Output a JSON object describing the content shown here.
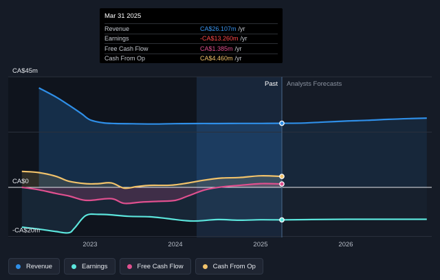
{
  "colors": {
    "revenue": "#2f8fe8",
    "earnings": "#5ce6dd",
    "free_cash_flow": "#e0508f",
    "cash_from_op": "#f2c36b"
  },
  "tooltip": {
    "date": "Mar 31 2025",
    "rows": [
      {
        "label": "Revenue",
        "value": "CA$26.107m",
        "unit": "/yr",
        "color": "#3a95f0"
      },
      {
        "label": "Earnings",
        "value": "-CA$13.260m",
        "unit": "/yr",
        "color": "#ff4a4a"
      },
      {
        "label": "Free Cash Flow",
        "value": "CA$1.385m",
        "unit": "/yr",
        "color": "#e0508f"
      },
      {
        "label": "Cash From Op",
        "value": "CA$4.460m",
        "unit": "/yr",
        "color": "#f2c36b"
      }
    ]
  },
  "legend": [
    {
      "label": "Revenue",
      "color": "#2f8fe8"
    },
    {
      "label": "Earnings",
      "color": "#5ce6dd"
    },
    {
      "label": "Free Cash Flow",
      "color": "#e0508f"
    },
    {
      "label": "Cash From Op",
      "color": "#f2c36b"
    }
  ],
  "chart_data": {
    "type": "line",
    "y_unit": "CA$ millions",
    "ylim": [
      -20,
      45
    ],
    "y_tick_labels": [
      {
        "value": 45,
        "label": "CA$45m"
      },
      {
        "value": 0,
        "label": "CA$0"
      },
      {
        "value": -20,
        "label": "-CA$20m"
      }
    ],
    "x_tick_labels": [
      {
        "value": 2023.0,
        "label": "2023"
      },
      {
        "value": 2024.0,
        "label": "2024"
      },
      {
        "value": 2025.0,
        "label": "2025"
      },
      {
        "value": 2026.0,
        "label": "2026"
      }
    ],
    "xlim": [
      2022.2,
      2027.0
    ],
    "past_label": "Past",
    "forecast_label": "Analysts Forecasts",
    "current_date": 2025.25,
    "highlight_start": 2024.25,
    "series": [
      {
        "name": "Revenue",
        "key": "revenue",
        "points": [
          [
            2022.4,
            40.5
          ],
          [
            2022.6,
            36.8
          ],
          [
            2022.75,
            33.5
          ],
          [
            2022.9,
            30
          ],
          [
            2023.0,
            27.5
          ],
          [
            2023.15,
            26.3
          ],
          [
            2023.3,
            26.0
          ],
          [
            2023.5,
            25.9
          ],
          [
            2023.75,
            25.8
          ],
          [
            2024.0,
            25.95
          ],
          [
            2024.25,
            26.0
          ],
          [
            2024.5,
            26.0
          ],
          [
            2024.75,
            26.05
          ],
          [
            2025.0,
            26.05
          ],
          [
            2025.25,
            26.107
          ]
        ],
        "forecast": [
          [
            2025.25,
            26.107
          ],
          [
            2025.5,
            26.2
          ],
          [
            2025.75,
            26.6
          ],
          [
            2026.0,
            27.0
          ],
          [
            2026.25,
            27.3
          ],
          [
            2026.5,
            27.7
          ],
          [
            2026.75,
            28.0
          ],
          [
            2026.95,
            28.2
          ]
        ]
      },
      {
        "name": "Earnings",
        "key": "earnings",
        "points": [
          [
            2022.2,
            -16.2
          ],
          [
            2022.4,
            -17.0
          ],
          [
            2022.6,
            -18.0
          ],
          [
            2022.75,
            -18.5
          ],
          [
            2022.82,
            -16.5
          ],
          [
            2022.95,
            -11.5
          ],
          [
            2023.1,
            -11.0
          ],
          [
            2023.25,
            -11.2
          ],
          [
            2023.45,
            -11.8
          ],
          [
            2023.7,
            -12.0
          ],
          [
            2023.9,
            -12.7
          ],
          [
            2024.1,
            -13.5
          ],
          [
            2024.25,
            -13.7
          ],
          [
            2024.5,
            -13.1
          ],
          [
            2024.75,
            -13.4
          ],
          [
            2025.0,
            -13.2
          ],
          [
            2025.25,
            -13.26
          ]
        ],
        "forecast": [
          [
            2025.25,
            -13.26
          ],
          [
            2025.6,
            -13.1
          ],
          [
            2026.0,
            -13.0
          ],
          [
            2026.5,
            -13.0
          ],
          [
            2026.95,
            -13.0
          ]
        ]
      },
      {
        "name": "Free Cash Flow",
        "key": "free_cash_flow",
        "points": [
          [
            2022.2,
            0
          ],
          [
            2022.4,
            -1.0
          ],
          [
            2022.6,
            -2.5
          ],
          [
            2022.75,
            -3.5
          ],
          [
            2022.9,
            -5.0
          ],
          [
            2023.0,
            -5.3
          ],
          [
            2023.25,
            -4.6
          ],
          [
            2023.4,
            -6.5
          ],
          [
            2023.6,
            -6.0
          ],
          [
            2023.8,
            -5.7
          ],
          [
            2024.0,
            -5.3
          ],
          [
            2024.15,
            -3.5
          ],
          [
            2024.35,
            -1.0
          ],
          [
            2024.55,
            0.2
          ],
          [
            2024.75,
            0.8
          ],
          [
            2025.0,
            1.5
          ],
          [
            2025.25,
            1.385
          ]
        ]
      },
      {
        "name": "Cash From Op",
        "key": "cash_from_op",
        "points": [
          [
            2022.2,
            6.5
          ],
          [
            2022.4,
            6.0
          ],
          [
            2022.6,
            4.5
          ],
          [
            2022.75,
            2.5
          ],
          [
            2022.95,
            1.5
          ],
          [
            2023.1,
            1.5
          ],
          [
            2023.25,
            1.8
          ],
          [
            2023.4,
            -0.3
          ],
          [
            2023.55,
            0.3
          ],
          [
            2023.7,
            0.8
          ],
          [
            2023.95,
            0.9
          ],
          [
            2024.15,
            1.8
          ],
          [
            2024.35,
            3.0
          ],
          [
            2024.55,
            3.8
          ],
          [
            2024.75,
            4.0
          ],
          [
            2025.0,
            4.7
          ],
          [
            2025.25,
            4.46
          ]
        ]
      }
    ]
  }
}
